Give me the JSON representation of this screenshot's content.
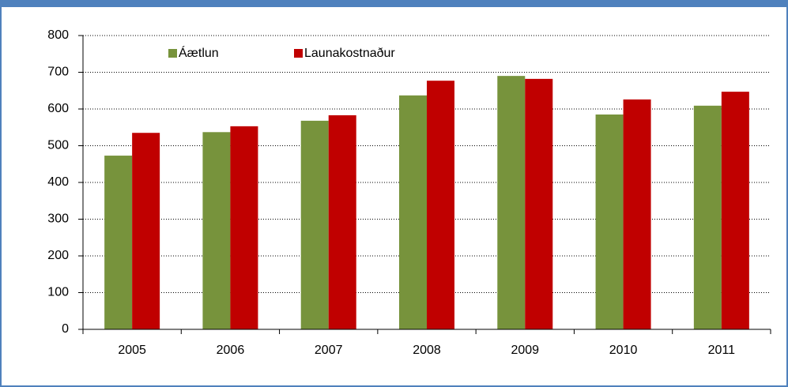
{
  "chart_data": {
    "type": "bar",
    "categories": [
      "2005",
      "2006",
      "2007",
      "2008",
      "2009",
      "2010",
      "2011"
    ],
    "series": [
      {
        "name": "Áætlun",
        "color": "#77933c",
        "values": [
          473,
          537,
          568,
          637,
          690,
          585,
          609
        ]
      },
      {
        "name": "Launakostnaður",
        "color": "#c00000",
        "values": [
          535,
          553,
          583,
          677,
          682,
          626,
          647
        ]
      }
    ],
    "ylim": [
      0,
      800
    ],
    "yticks": [
      0,
      100,
      200,
      300,
      400,
      500,
      600,
      700,
      800
    ],
    "grid": true,
    "legend": "top-left"
  }
}
